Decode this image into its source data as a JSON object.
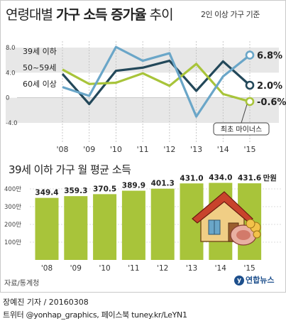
{
  "header": {
    "title_main": "연령대별 ",
    "title_bold": "가구 소득 증가율",
    "title_tail": " 추이",
    "subtitle": "2인 이상 가구 기준"
  },
  "chart_data": [
    {
      "type": "line",
      "title": "연령대별 가구 소득 증가율 추이",
      "x": [
        "'08",
        "'09",
        "'10",
        "'11",
        "'12",
        "'13",
        "'14",
        "'15"
      ],
      "y_ticks": [
        "8.0",
        "4.0",
        "0",
        "-4.0"
      ],
      "ylim": [
        -4,
        8
      ],
      "grid": false,
      "series": [
        {
          "name": "39세 이하",
          "color": "#23485a",
          "values": [
            3.8,
            -1.0,
            4.3,
            4.8,
            5.9,
            1.1,
            5.8,
            2.0
          ],
          "end_label": "2.0%"
        },
        {
          "name": "50~59세",
          "color": "#a8c43a",
          "values": [
            4.5,
            2.2,
            2.4,
            3.9,
            1.9,
            5.4,
            0.6,
            -0.6
          ],
          "end_label": "-0.6%"
        },
        {
          "name": "60세 이상",
          "color": "#6aa6c8",
          "values": [
            1.7,
            0.3,
            8.1,
            5.9,
            7.1,
            -3.0,
            3.4,
            6.8
          ],
          "end_label": "6.8%"
        }
      ],
      "annotation": "최초 마이너스"
    },
    {
      "type": "bar",
      "title": "39세 이하 가구 월 평균 소득",
      "categories": [
        "'08",
        "'09",
        "'10",
        "'11",
        "'12",
        "'13",
        "'14",
        "'15"
      ],
      "values": [
        349.4,
        359.3,
        370.5,
        389.9,
        401.3,
        431.0,
        434.0,
        431.6
      ],
      "value_labels": [
        "349.4",
        "359.3",
        "370.5",
        "389.9",
        "401.3",
        "431.0",
        "434.0",
        "431.6"
      ],
      "unit_label": "만원",
      "y_ticks": [
        "400만",
        "300만",
        "200만",
        "100만"
      ],
      "ylim": [
        0,
        430
      ],
      "colors": {
        "bar": "#a8c43a",
        "highlight": "#8fae2a"
      }
    }
  ],
  "footer": {
    "source": "자료/통계청",
    "logo": "연합뉴스",
    "credit1": "장예진 기자 / 20160308",
    "credit2": "트위터 @yonhap_graphics, 페이스북 tuney.kr/LeYN1"
  }
}
